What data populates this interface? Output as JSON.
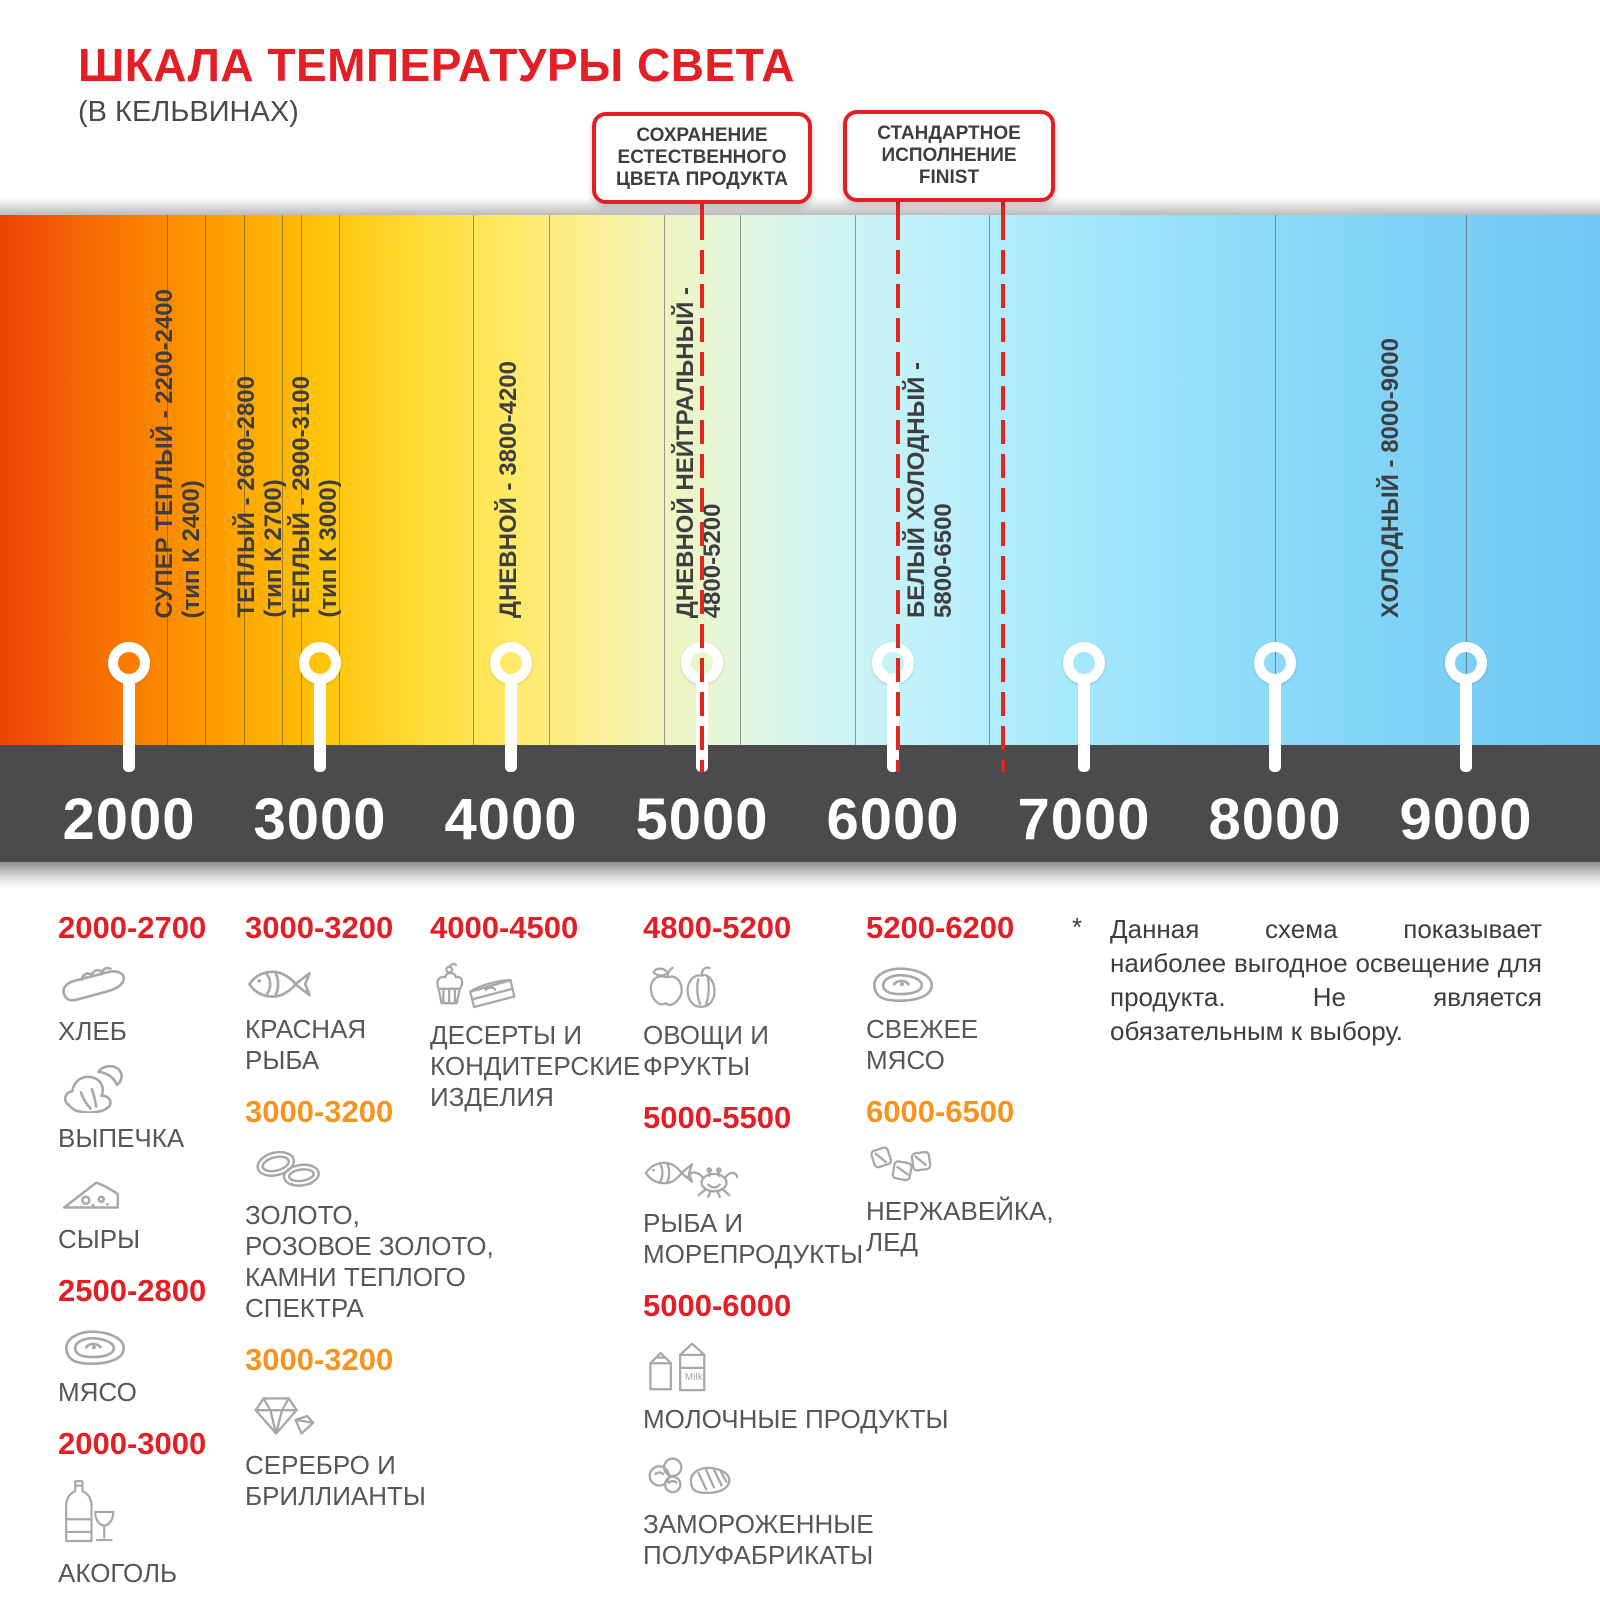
{
  "title": "ШКАЛА ТЕМПЕРАТУРЫ СВЕТА",
  "subtitle": "(В КЕЛЬВИНАХ)",
  "callouts": {
    "natural_color": "СОХРАНЕНИЕ ЕСТЕСТВЕННОГО ЦВЕТА ПРОДУКТА",
    "finist_standard": "СТАНДАРТНОЕ ИСПОЛНЕНИЕ FINIST"
  },
  "colors": {
    "accent_red": "#E31E24",
    "accent_orange": "#F7941D",
    "axis_bar": "#4B4B4D",
    "band_label": "#3E3E40",
    "legend_text": "#56575A"
  },
  "scale": {
    "unit": "K",
    "ticks": [
      2000,
      3000,
      4000,
      5000,
      6000,
      7000,
      8000,
      9000
    ],
    "bands": [
      {
        "name": "СУПЕР ТЕПЛЫЙ - 2200-2400",
        "type": "(тип К 2400)",
        "range": [
          2200,
          2400
        ]
      },
      {
        "name": "ТЕПЛЫЙ - 2600-2800",
        "type": "(тип К 2700)",
        "range": [
          2600,
          2800
        ]
      },
      {
        "name": "ТЕПЛЫЙ - 2900-3100",
        "type": "(тип К 3000)",
        "range": [
          2900,
          3100
        ]
      },
      {
        "name": "ДНЕВНОЙ - 3800-4200",
        "type": "",
        "range": [
          3800,
          4200
        ]
      },
      {
        "name": "ДНЕВНОЙ НЕЙТРАЛЬНЫЙ -",
        "type": "4800-5200",
        "range": [
          4800,
          5200
        ]
      },
      {
        "name": "БЕЛЫЙ ХОЛОДНЫЙ -",
        "type": "5800-6500",
        "range": [
          5800,
          6500
        ]
      },
      {
        "name": "ХОЛОДНЫЙ - 8000-9000",
        "type": "",
        "range": [
          8000,
          9000
        ]
      }
    ],
    "dashed_marks": [
      5000,
      6000,
      6500
    ]
  },
  "legend": {
    "columns": [
      {
        "items": [
          {
            "header": "2000-2700",
            "header_color": "red",
            "products": [
              {
                "icon": "bread-icon",
                "label": "ХЛЕБ"
              },
              {
                "icon": "croissant-icon",
                "label": "ВЫПЕЧКА"
              },
              {
                "icon": "cheese-icon",
                "label": "СЫРЫ"
              }
            ]
          },
          {
            "header": "2500-2800",
            "header_color": "red",
            "products": [
              {
                "icon": "meat-icon",
                "label": "МЯСО"
              }
            ]
          },
          {
            "header": "2000-3000",
            "header_color": "red",
            "products": [
              {
                "icon": "alcohol-icon",
                "label": "АКОГОЛЬ"
              }
            ]
          }
        ]
      },
      {
        "items": [
          {
            "header": "3000-3200",
            "header_color": "red",
            "products": [
              {
                "icon": "fish-icon",
                "label": "КРАСНАЯ\nРЫБА"
              }
            ]
          },
          {
            "header": "3000-3200",
            "header_color": "orange",
            "products": [
              {
                "icon": "rings-icon",
                "label": "ЗОЛОТО,\nРОЗОВОЕ ЗОЛОТО,\nКАМНИ ТЕПЛОГО\nСПЕКТРА"
              }
            ]
          },
          {
            "header": "3000-3200",
            "header_color": "orange",
            "products": [
              {
                "icon": "diamond-icon",
                "label": "СЕРЕБРО И\nБРИЛЛИАНТЫ"
              }
            ]
          }
        ]
      },
      {
        "items": [
          {
            "header": "4000-4500",
            "header_color": "red",
            "products": [
              {
                "icon": "dessert-icon",
                "label": "ДЕСЕРТЫ И\nКОНДИТЕРСКИЕ\nИЗДЕЛИЯ"
              }
            ]
          }
        ]
      },
      {
        "items": [
          {
            "header": "4800-5200",
            "header_color": "red",
            "products": [
              {
                "icon": "vegetables-icon",
                "label": "ОВОЩИ И\nФРУКТЫ"
              }
            ]
          },
          {
            "header": "5000-5500",
            "header_color": "red",
            "products": [
              {
                "icon": "seafood-icon",
                "label": "РЫБА И\nМОРЕПРОДУКТЫ"
              }
            ]
          },
          {
            "header": "5000-6000",
            "header_color": "red",
            "products": [
              {
                "icon": "dairy-icon",
                "label": "МОЛОЧНЫЕ ПРОДУКТЫ"
              },
              {
                "icon": "frozen-icon",
                "label": "ЗАМОРОЖЕННЫЕ\nПОЛУФАБРИКАТЫ"
              }
            ]
          }
        ]
      },
      {
        "items": [
          {
            "header": "5200-6200",
            "header_color": "red",
            "products": [
              {
                "icon": "fresh-meat-icon",
                "label": "СВЕЖЕЕ\nМЯСО"
              }
            ]
          },
          {
            "header": "6000-6500",
            "header_color": "orange",
            "products": [
              {
                "icon": "ice-icon",
                "label": "НЕРЖАВЕЙКА,\nЛЕД"
              }
            ]
          }
        ]
      }
    ]
  },
  "footnote": {
    "mark": "*",
    "text": "Данная схема показывает наиболее выгодное освещение для продукта. Не является обязательным к выбору."
  }
}
